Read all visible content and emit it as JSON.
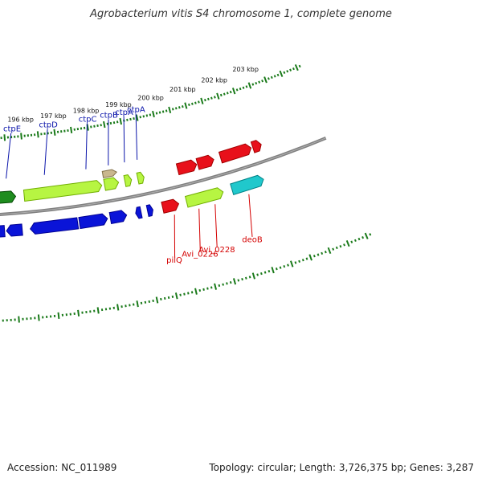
{
  "title": "Agrobacterium vitis S4 chromosome 1, complete genome",
  "footer": {
    "accession": "Accession: NC_011989",
    "stats": "Topology: circular; Length: 3,726,375 bp; Genes: 3,287"
  },
  "colors": {
    "backbone": "#808080",
    "blue": "#0a14d8",
    "green": "#b7f542",
    "darkgreen": "#1e8c1e",
    "tan": "#c9b78e",
    "red": "#e8101a",
    "cyan": "#20c8cc",
    "tick": "#1a7a1a",
    "label_blue": "#0a14aa",
    "label_red": "#d40000"
  },
  "axis": {
    "unit": "kbp",
    "ticks": [
      {
        "kbp": 196,
        "label": "196 kbp"
      },
      {
        "kbp": 197,
        "label": "197 kbp"
      },
      {
        "kbp": 198,
        "label": "198 kbp"
      },
      {
        "kbp": 199,
        "label": "199 kbp"
      },
      {
        "kbp": 200,
        "label": "200 kbp"
      },
      {
        "kbp": 201,
        "label": "201 kbp"
      },
      {
        "kbp": 202,
        "label": "202 kbp"
      },
      {
        "kbp": 203,
        "label": "203 kbp"
      }
    ]
  },
  "features": [
    {
      "id": "f1",
      "start": 195.05,
      "end": 195.3,
      "track": "outer",
      "strand": "rev",
      "color": "blue"
    },
    {
      "id": "f2",
      "start": 195.35,
      "end": 195.78,
      "track": "outer",
      "strand": "rev",
      "color": "blue"
    },
    {
      "id": "f3",
      "start": 196.0,
      "end": 197.3,
      "track": "outer",
      "strand": "rev",
      "color": "blue"
    },
    {
      "id": "f4",
      "start": 197.35,
      "end": 198.12,
      "track": "outer",
      "strand": "fwd",
      "color": "blue"
    },
    {
      "id": "f5",
      "start": 198.2,
      "end": 198.65,
      "track": "outer",
      "strand": "fwd",
      "color": "blue"
    },
    {
      "id": "f6",
      "start": 198.9,
      "end": 199.05,
      "track": "outer",
      "strand": "rev",
      "color": "blue"
    },
    {
      "id": "f7",
      "start": 199.23,
      "end": 199.38,
      "track": "outer",
      "strand": "fwd",
      "color": "blue"
    },
    {
      "id": "f8",
      "start": 194.9,
      "end": 195.15,
      "track": "inner",
      "strand": "fwd",
      "color": "green"
    },
    {
      "id": "f9",
      "start": 195.2,
      "end": 195.68,
      "track": "inner",
      "strand": "fwd",
      "color": "darkgreen"
    },
    {
      "id": "f10",
      "start": 195.92,
      "end": 198.12,
      "track": "inner",
      "strand": "fwd",
      "color": "green"
    },
    {
      "id": "f11",
      "start": 198.2,
      "end": 198.6,
      "track": "inner",
      "strand": "fwd",
      "color": "green"
    },
    {
      "id": "f12",
      "start": 198.2,
      "end": 198.6,
      "track": "inner2",
      "strand": "fwd",
      "color": "tan"
    },
    {
      "id": "f13",
      "start": 198.78,
      "end": 198.97,
      "track": "inner",
      "strand": "fwd",
      "color": "green"
    },
    {
      "id": "f14",
      "start": 199.15,
      "end": 199.33,
      "track": "inner",
      "strand": "fwd",
      "color": "green"
    },
    {
      "id": "f15",
      "start": 199.65,
      "end": 200.1,
      "track": "outer",
      "strand": "fwd",
      "color": "red"
    },
    {
      "id": "f16",
      "start": 200.32,
      "end": 201.35,
      "track": "outer",
      "strand": "fwd",
      "color": "green"
    },
    {
      "id": "f17",
      "start": 200.3,
      "end": 200.85,
      "track": "inner",
      "strand": "fwd",
      "color": "red"
    },
    {
      "id": "f18",
      "start": 200.88,
      "end": 201.35,
      "track": "inner",
      "strand": "fwd",
      "color": "red"
    },
    {
      "id": "f19",
      "start": 201.6,
      "end": 202.5,
      "track": "outer",
      "strand": "fwd",
      "color": "cyan"
    },
    {
      "id": "f20",
      "start": 201.55,
      "end": 202.45,
      "track": "inner",
      "strand": "fwd",
      "color": "red"
    },
    {
      "id": "f21",
      "start": 202.5,
      "end": 202.75,
      "track": "inner",
      "strand": "fwd",
      "color": "red"
    }
  ],
  "gene_labels": [
    {
      "text": "ctpE",
      "kbp": 195.45,
      "side": "blue"
    },
    {
      "text": "ctpD",
      "kbp": 196.55,
      "side": "blue"
    },
    {
      "text": "ctpC",
      "kbp": 197.75,
      "side": "blue"
    },
    {
      "text": "ctpB",
      "kbp": 198.4,
      "side": "blue"
    },
    {
      "text": "ctpA",
      "kbp": 198.87,
      "side": "blue"
    },
    {
      "text": "ctpA",
      "kbp": 199.24,
      "side": "blue"
    },
    {
      "text": "pilQ",
      "kbp": 199.92,
      "side": "red"
    },
    {
      "text": "Avi_0226",
      "kbp": 200.6,
      "side": "red"
    },
    {
      "text": "Avi_0228",
      "kbp": 201.05,
      "side": "red"
    },
    {
      "text": "deoB",
      "kbp": 202.0,
      "side": "red"
    }
  ]
}
